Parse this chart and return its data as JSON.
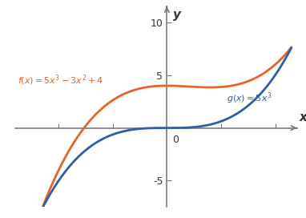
{
  "title": "",
  "xlabel": "x",
  "ylabel": "y",
  "xlim": [
    -1.4,
    1.2
  ],
  "ylim": [
    -7.5,
    11.5
  ],
  "f_color": "#E8622A",
  "g_color": "#2E5FA3",
  "f_label": "f(x) = 5x^3 - 3x^2 + 4",
  "g_label": "g(x) = 5x^3",
  "yticks": [
    -5,
    5,
    10
  ],
  "xticks": [
    -1.0,
    -0.5,
    0.5,
    1.0
  ],
  "background_color": "#FFFFFF",
  "linewidth": 2.0,
  "x_start": -1.3,
  "x_end": 1.15
}
